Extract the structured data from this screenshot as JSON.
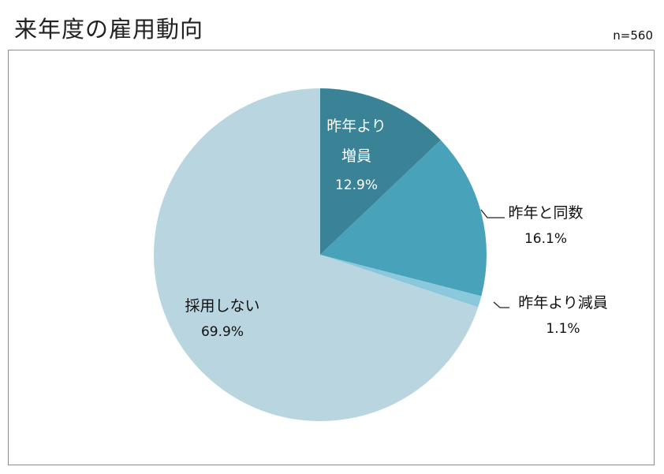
{
  "header": {
    "title": "来年度の雇用動向",
    "sample_size": "n=560"
  },
  "chart_data": {
    "type": "pie",
    "title": "来年度の雇用動向",
    "start_angle_deg": 0,
    "direction": "clockwise",
    "slices": [
      {
        "label_lines": [
          "昨年より",
          "増員"
        ],
        "value": 12.9,
        "value_label": "12.9%",
        "color": "#3a8396",
        "label_color": "#ffffff"
      },
      {
        "label_lines": [
          "昨年と同数"
        ],
        "value": 16.1,
        "value_label": "16.1%",
        "color": "#48a2ba",
        "label_color": "#111111"
      },
      {
        "label_lines": [
          "昨年より減員"
        ],
        "value": 1.1,
        "value_label": "1.1%",
        "color": "#8cc8dc",
        "label_color": "#111111"
      },
      {
        "label_lines": [
          "採用しない"
        ],
        "value": 69.9,
        "value_label": "69.9%",
        "color": "#b8d5e0",
        "label_color": "#111111"
      }
    ]
  }
}
